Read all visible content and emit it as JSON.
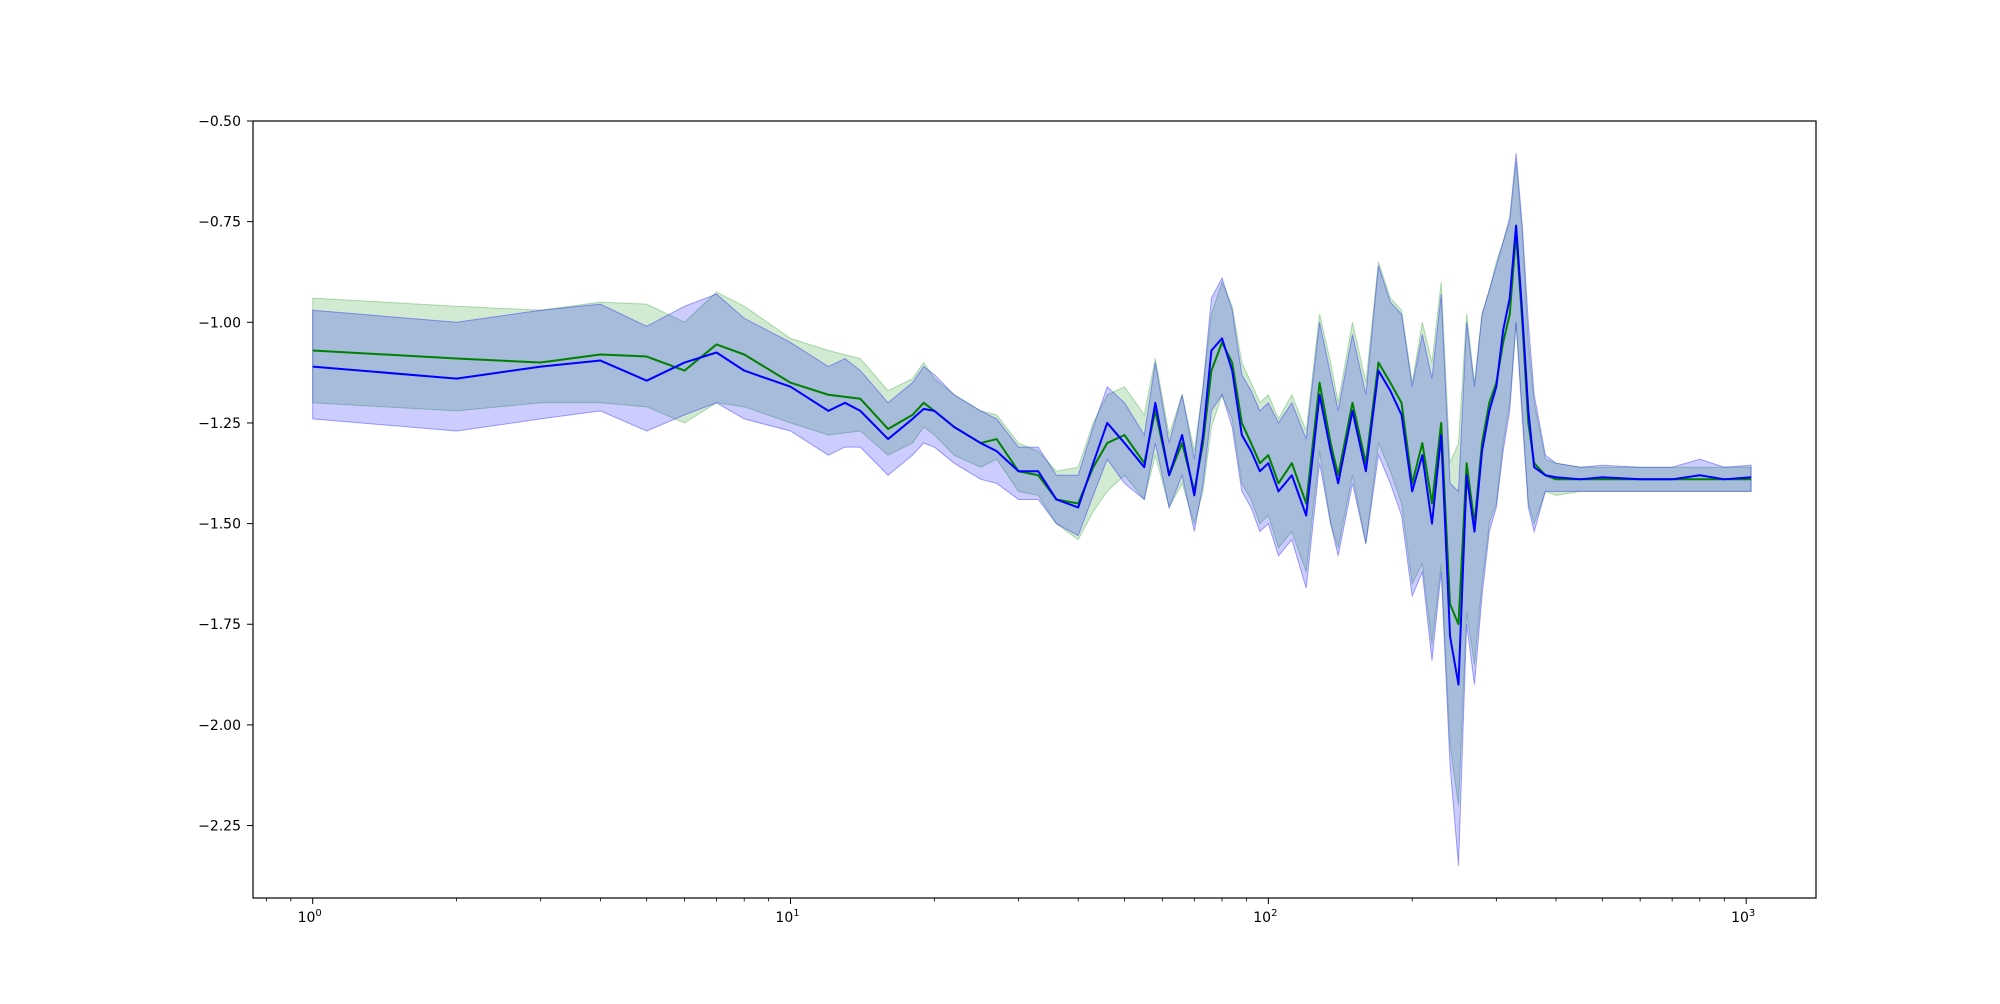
{
  "chart_data": {
    "type": "line",
    "title": "",
    "xlabel": "",
    "ylabel": "",
    "xscale": "log",
    "xlim": [
      0.75,
      1400
    ],
    "ylim": [
      -2.43,
      -0.5
    ],
    "grid": false,
    "legend": "none",
    "x_ticks": [
      {
        "value": 1,
        "base": "10",
        "exp": "0"
      },
      {
        "value": 10,
        "base": "10",
        "exp": "1"
      },
      {
        "value": 100,
        "base": "10",
        "exp": "2"
      },
      {
        "value": 1000,
        "base": "10",
        "exp": "3"
      }
    ],
    "y_ticks": [
      {
        "value": -0.5,
        "label": "−0.50"
      },
      {
        "value": -0.75,
        "label": "−0.75"
      },
      {
        "value": -1.0,
        "label": "−1.00"
      },
      {
        "value": -1.25,
        "label": "−1.25"
      },
      {
        "value": -1.5,
        "label": "−1.50"
      },
      {
        "value": -1.75,
        "label": "−1.75"
      },
      {
        "value": -2.0,
        "label": "−2.00"
      },
      {
        "value": -2.25,
        "label": "−2.25"
      }
    ],
    "series": [
      {
        "color": "#008000",
        "band_color": "#2ca02c",
        "band_opacity": 0.22,
        "x": [
          1,
          2,
          3,
          4,
          5,
          6,
          7,
          8,
          10,
          12,
          14,
          16,
          18,
          19,
          20,
          22,
          25,
          27,
          30,
          33,
          36,
          40,
          43,
          46,
          50,
          55,
          58,
          62,
          66,
          70,
          73,
          76,
          80,
          84,
          88,
          92,
          96,
          100,
          105,
          112,
          120,
          128,
          135,
          140,
          150,
          160,
          170,
          180,
          190,
          200,
          210,
          220,
          230,
          240,
          250,
          260,
          270,
          280,
          290,
          300,
          310,
          320,
          330,
          340,
          350,
          360,
          380,
          400,
          450,
          500,
          600,
          700,
          800,
          900,
          1024
        ],
        "y": [
          -1.07,
          -1.09,
          -1.1,
          -1.08,
          -1.085,
          -1.12,
          -1.055,
          -1.08,
          -1.15,
          -1.18,
          -1.19,
          -1.265,
          -1.23,
          -1.2,
          -1.22,
          -1.26,
          -1.3,
          -1.29,
          -1.37,
          -1.38,
          -1.44,
          -1.45,
          -1.36,
          -1.3,
          -1.28,
          -1.35,
          -1.22,
          -1.38,
          -1.3,
          -1.42,
          -1.3,
          -1.12,
          -1.05,
          -1.1,
          -1.25,
          -1.3,
          -1.35,
          -1.33,
          -1.4,
          -1.35,
          -1.45,
          -1.15,
          -1.3,
          -1.38,
          -1.2,
          -1.35,
          -1.1,
          -1.15,
          -1.2,
          -1.4,
          -1.3,
          -1.45,
          -1.25,
          -1.7,
          -1.75,
          -1.35,
          -1.5,
          -1.3,
          -1.2,
          -1.15,
          -1.05,
          -0.98,
          -0.78,
          -1.0,
          -1.25,
          -1.35,
          -1.38,
          -1.39,
          -1.39,
          -1.39,
          -1.39,
          -1.39,
          -1.39,
          -1.39,
          -1.39
        ],
        "lower": [
          -1.2,
          -1.22,
          -1.2,
          -1.2,
          -1.21,
          -1.25,
          -1.2,
          -1.21,
          -1.25,
          -1.28,
          -1.27,
          -1.33,
          -1.3,
          -1.26,
          -1.28,
          -1.33,
          -1.36,
          -1.34,
          -1.42,
          -1.43,
          -1.5,
          -1.54,
          -1.47,
          -1.42,
          -1.38,
          -1.44,
          -1.33,
          -1.46,
          -1.4,
          -1.5,
          -1.42,
          -1.26,
          -1.18,
          -1.24,
          -1.4,
          -1.44,
          -1.5,
          -1.48,
          -1.56,
          -1.52,
          -1.62,
          -1.32,
          -1.5,
          -1.56,
          -1.38,
          -1.55,
          -1.3,
          -1.37,
          -1.45,
          -1.65,
          -1.6,
          -1.8,
          -1.6,
          -2.05,
          -2.2,
          -1.72,
          -1.85,
          -1.65,
          -1.5,
          -1.45,
          -1.3,
          -1.2,
          -1.0,
          -1.22,
          -1.45,
          -1.5,
          -1.42,
          -1.43,
          -1.42,
          -1.42,
          -1.42,
          -1.42,
          -1.42,
          -1.42,
          -1.42
        ],
        "upper": [
          -0.94,
          -0.96,
          -0.97,
          -0.95,
          -0.955,
          -1.0,
          -0.925,
          -0.96,
          -1.04,
          -1.07,
          -1.09,
          -1.17,
          -1.14,
          -1.1,
          -1.14,
          -1.18,
          -1.22,
          -1.23,
          -1.3,
          -1.32,
          -1.37,
          -1.36,
          -1.25,
          -1.18,
          -1.16,
          -1.23,
          -1.09,
          -1.28,
          -1.18,
          -1.32,
          -1.16,
          -0.98,
          -0.9,
          -0.96,
          -1.1,
          -1.15,
          -1.2,
          -1.18,
          -1.24,
          -1.18,
          -1.27,
          -0.98,
          -1.1,
          -1.2,
          -1.0,
          -1.15,
          -0.85,
          -0.94,
          -0.97,
          -1.15,
          -1.0,
          -1.1,
          -0.9,
          -1.35,
          -1.3,
          -0.98,
          -1.15,
          -0.98,
          -0.92,
          -0.85,
          -0.8,
          -0.75,
          -0.6,
          -0.78,
          -1.05,
          -1.2,
          -1.34,
          -1.35,
          -1.36,
          -1.36,
          -1.36,
          -1.36,
          -1.36,
          -1.36,
          -1.36
        ]
      },
      {
        "color": "#0000ff",
        "band_color": "#0000ff",
        "band_opacity": 0.2,
        "x": [
          1,
          2,
          3,
          4,
          5,
          6,
          7,
          8,
          10,
          12,
          13,
          14,
          16,
          18,
          19,
          20,
          22,
          25,
          27,
          30,
          33,
          36,
          40,
          43,
          46,
          50,
          55,
          58,
          62,
          66,
          70,
          73,
          76,
          80,
          84,
          88,
          92,
          96,
          100,
          105,
          112,
          120,
          128,
          135,
          140,
          150,
          160,
          170,
          180,
          190,
          200,
          210,
          220,
          230,
          240,
          250,
          260,
          270,
          280,
          290,
          300,
          310,
          320,
          330,
          340,
          350,
          360,
          380,
          400,
          450,
          500,
          600,
          700,
          800,
          900,
          1024
        ],
        "y": [
          -1.11,
          -1.14,
          -1.11,
          -1.095,
          -1.145,
          -1.1,
          -1.075,
          -1.12,
          -1.16,
          -1.22,
          -1.2,
          -1.22,
          -1.29,
          -1.24,
          -1.215,
          -1.22,
          -1.26,
          -1.3,
          -1.32,
          -1.37,
          -1.37,
          -1.44,
          -1.46,
          -1.35,
          -1.25,
          -1.3,
          -1.36,
          -1.2,
          -1.38,
          -1.28,
          -1.43,
          -1.28,
          -1.07,
          -1.04,
          -1.12,
          -1.28,
          -1.32,
          -1.37,
          -1.35,
          -1.42,
          -1.38,
          -1.48,
          -1.18,
          -1.32,
          -1.4,
          -1.22,
          -1.37,
          -1.12,
          -1.17,
          -1.23,
          -1.42,
          -1.33,
          -1.5,
          -1.28,
          -1.78,
          -1.9,
          -1.38,
          -1.52,
          -1.32,
          -1.22,
          -1.16,
          -1.02,
          -0.94,
          -0.76,
          -0.98,
          -1.22,
          -1.36,
          -1.38,
          -1.385,
          -1.39,
          -1.385,
          -1.39,
          -1.39,
          -1.38,
          -1.39,
          -1.385
        ],
        "lower": [
          -1.24,
          -1.27,
          -1.24,
          -1.22,
          -1.27,
          -1.23,
          -1.2,
          -1.24,
          -1.27,
          -1.33,
          -1.31,
          -1.31,
          -1.38,
          -1.33,
          -1.3,
          -1.31,
          -1.35,
          -1.39,
          -1.4,
          -1.44,
          -1.44,
          -1.5,
          -1.53,
          -1.43,
          -1.34,
          -1.4,
          -1.44,
          -1.3,
          -1.46,
          -1.38,
          -1.52,
          -1.4,
          -1.22,
          -1.18,
          -1.26,
          -1.42,
          -1.46,
          -1.52,
          -1.5,
          -1.58,
          -1.54,
          -1.66,
          -1.35,
          -1.5,
          -1.58,
          -1.4,
          -1.55,
          -1.33,
          -1.4,
          -1.48,
          -1.68,
          -1.62,
          -1.84,
          -1.62,
          -2.1,
          -2.35,
          -1.75,
          -1.9,
          -1.68,
          -1.52,
          -1.46,
          -1.32,
          -1.22,
          -1.0,
          -1.24,
          -1.46,
          -1.52,
          -1.42,
          -1.42,
          -1.42,
          -1.42,
          -1.42,
          -1.42,
          -1.42,
          -1.42,
          -1.42
        ],
        "upper": [
          -0.97,
          -1.0,
          -0.97,
          -0.955,
          -1.01,
          -0.96,
          -0.93,
          -0.99,
          -1.05,
          -1.11,
          -1.09,
          -1.12,
          -1.2,
          -1.15,
          -1.11,
          -1.13,
          -1.18,
          -1.22,
          -1.24,
          -1.31,
          -1.31,
          -1.38,
          -1.38,
          -1.26,
          -1.16,
          -1.2,
          -1.28,
          -1.1,
          -1.3,
          -1.18,
          -1.34,
          -1.16,
          -0.94,
          -0.89,
          -0.97,
          -1.13,
          -1.17,
          -1.22,
          -1.2,
          -1.25,
          -1.2,
          -1.29,
          -1.0,
          -1.13,
          -1.22,
          -1.03,
          -1.18,
          -0.86,
          -0.95,
          -0.98,
          -1.16,
          -1.03,
          -1.14,
          -0.93,
          -1.4,
          -1.42,
          -1.0,
          -1.16,
          -0.98,
          -0.92,
          -0.86,
          -0.8,
          -0.74,
          -0.58,
          -0.76,
          -1.0,
          -1.18,
          -1.33,
          -1.35,
          -1.36,
          -1.355,
          -1.36,
          -1.36,
          -1.34,
          -1.36,
          -1.355
        ]
      }
    ]
  }
}
